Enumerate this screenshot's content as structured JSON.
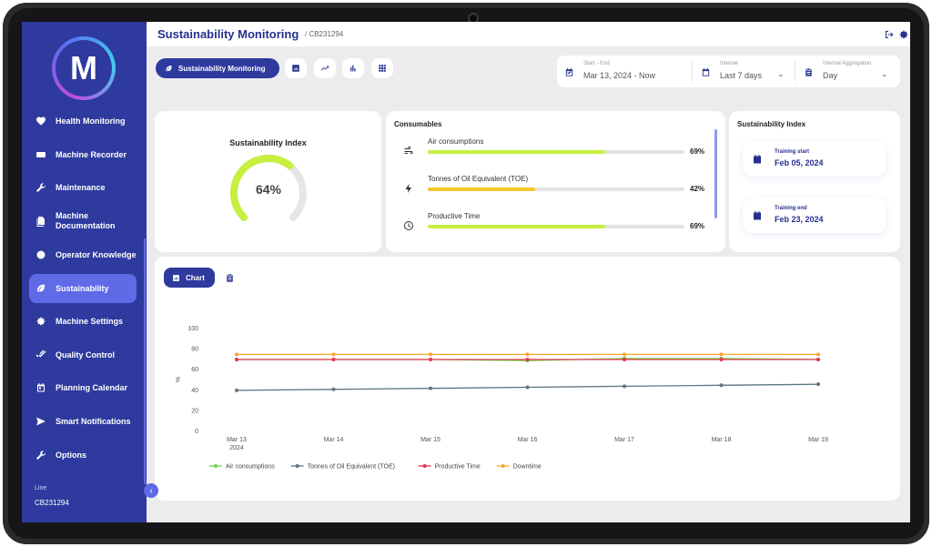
{
  "colors": {
    "primary": "#2e3a9e",
    "accent": "#5e6ae6",
    "lime": "#c6ef3f",
    "yellow": "#f2c92a",
    "series_air": "#6cd44a",
    "series_toe": "#5e7480",
    "series_productive": "#e8344f",
    "series_downtime": "#f6a431"
  },
  "sidebar": {
    "logo_letter": "M",
    "items": [
      {
        "label": "Health Monitoring",
        "icon": "heart-pulse-icon"
      },
      {
        "label": "Machine Recorder",
        "icon": "recorder-icon"
      },
      {
        "label": "Maintenance",
        "icon": "wrench-icon"
      },
      {
        "label": "Machine Documentation",
        "icon": "documents-icon"
      },
      {
        "label": "Operator Knowledge",
        "icon": "brain-icon"
      },
      {
        "label": "Sustainability",
        "icon": "leaf-icon"
      },
      {
        "label": "Machine Settings",
        "icon": "gear-icon"
      },
      {
        "label": "Quality Control",
        "icon": "check-double-icon"
      },
      {
        "label": "Planning Calendar",
        "icon": "calendar-icon"
      },
      {
        "label": "Smart Notifications",
        "icon": "send-icon"
      },
      {
        "label": "Options",
        "icon": "wrench-icon"
      }
    ],
    "active_index": 5,
    "line_label": "Line",
    "line_value": "CB231294"
  },
  "header": {
    "title": "Sustainability Monitoring",
    "subtitle": "/ CB231294",
    "icons": [
      "logout-icon",
      "gear-icon"
    ]
  },
  "toolbar": {
    "main_tab": "Sustainability Monitoring",
    "tool_icons": [
      "bar-chart-square-icon",
      "trending-up-icon",
      "bar-chart-icon",
      "grid-icon"
    ]
  },
  "filters": {
    "range_label": "Start - End",
    "range_value": "Mar 13, 2024 - Now",
    "interval_label": "Interval",
    "interval_value": "Last 7 days",
    "aggregation_label": "Interval Aggregation",
    "aggregation_value": "Day"
  },
  "sustainability_index": {
    "title": "Sustainability Index",
    "value_text": "64%",
    "value": 0.64
  },
  "consumables": {
    "title": "Consumables",
    "items": [
      {
        "name": "Air consumptions",
        "pct_text": "69%",
        "value": 0.69,
        "color": "#c6ef3f",
        "icon": "air-icon"
      },
      {
        "name": "Tonnes of Oil Equivalent (TOE)",
        "pct_text": "42%",
        "value": 0.42,
        "color": "#f2c92a",
        "icon": "bolt-icon"
      },
      {
        "name": "Productive Time",
        "pct_text": "69%",
        "value": 0.69,
        "color": "#c6ef3f",
        "icon": "clock-icon"
      }
    ]
  },
  "training": {
    "title": "Sustainability Index",
    "start_label": "Training start",
    "start_date": "Feb 05, 2024",
    "end_label": "Training end",
    "end_date": "Feb 23, 2024"
  },
  "chart_panel": {
    "tab_label": "Chart",
    "second_tab_icon": "clipboard-icon"
  },
  "chart_data": {
    "type": "line",
    "title": "",
    "xlabel": "",
    "ylabel": "%",
    "ylim": [
      0,
      100
    ],
    "yticks": [
      0,
      20,
      40,
      60,
      80,
      100
    ],
    "categories": [
      "Mar 13",
      "Mar 14",
      "Mar 15",
      "Mar 16",
      "Mar 17",
      "Mar 18",
      "Mar 19"
    ],
    "first_category_year": "2024",
    "grid": false,
    "legend_position": "bottom",
    "series": [
      {
        "name": "Air consumptions",
        "color": "#6cd44a",
        "values": [
          69,
          69,
          69,
          68,
          70,
          70,
          69
        ]
      },
      {
        "name": "Tonnes of Oil Equivalent (TOE)",
        "color": "#5e7480",
        "values": [
          39,
          40,
          41,
          42,
          43,
          44,
          45
        ]
      },
      {
        "name": "Productive Time",
        "color": "#e8344f",
        "values": [
          69,
          69,
          69,
          69,
          69,
          69,
          69
        ]
      },
      {
        "name": "Downtime",
        "color": "#f6a431",
        "values": [
          74,
          74,
          74,
          74,
          74,
          74,
          74
        ]
      }
    ]
  }
}
